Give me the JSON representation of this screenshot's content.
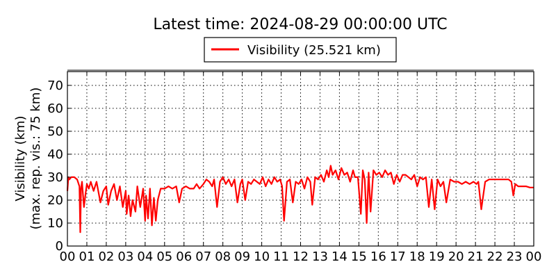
{
  "chart_data": {
    "type": "line",
    "title": "Latest time: 2024-08-29 00:00:00 UTC",
    "ylabel_line1": "Visibility (km)",
    "ylabel_line2": "(max. rep. vis.: 75 km)",
    "xlabel": "",
    "xlim": [
      0,
      24
    ],
    "ylim": [
      0,
      76
    ],
    "grid": true,
    "legend_position": "top-center",
    "x_tick_labels": [
      "00",
      "01",
      "02",
      "03",
      "04",
      "05",
      "06",
      "07",
      "08",
      "09",
      "10",
      "11",
      "12",
      "13",
      "14",
      "15",
      "16",
      "17",
      "18",
      "19",
      "20",
      "21",
      "22",
      "23",
      "00"
    ],
    "y_ticks": [
      0,
      10,
      20,
      30,
      40,
      50,
      60,
      70
    ],
    "series": [
      {
        "name": "Visibility (25.521 km)",
        "color": "#ff0000",
        "x": [
          0.0,
          0.05,
          0.1,
          0.2,
          0.35,
          0.5,
          0.62,
          0.66,
          0.7,
          0.75,
          0.85,
          0.95,
          1.0,
          1.1,
          1.2,
          1.35,
          1.5,
          1.7,
          1.85,
          2.0,
          2.1,
          2.25,
          2.4,
          2.55,
          2.7,
          2.85,
          3.0,
          3.05,
          3.15,
          3.25,
          3.35,
          3.5,
          3.6,
          3.75,
          3.9,
          4.0,
          4.05,
          4.15,
          4.25,
          4.35,
          4.45,
          4.55,
          4.65,
          4.8,
          5.0,
          5.2,
          5.4,
          5.6,
          5.75,
          5.9,
          6.1,
          6.3,
          6.5,
          6.65,
          6.8,
          7.0,
          7.15,
          7.3,
          7.45,
          7.55,
          7.7,
          7.85,
          8.0,
          8.15,
          8.3,
          8.45,
          8.6,
          8.75,
          8.9,
          9.0,
          9.15,
          9.3,
          9.45,
          9.6,
          9.75,
          9.9,
          10.05,
          10.2,
          10.35,
          10.5,
          10.65,
          10.8,
          10.95,
          11.05,
          11.15,
          11.3,
          11.45,
          11.6,
          11.75,
          11.9,
          12.05,
          12.2,
          12.35,
          12.5,
          12.6,
          12.75,
          12.9,
          13.05,
          13.2,
          13.35,
          13.45,
          13.55,
          13.65,
          13.8,
          13.95,
          14.1,
          14.25,
          14.4,
          14.55,
          14.7,
          14.8,
          14.95,
          15.1,
          15.2,
          15.3,
          15.4,
          15.5,
          15.6,
          15.75,
          15.9,
          16.05,
          16.2,
          16.35,
          16.5,
          16.65,
          16.8,
          16.95,
          17.1,
          17.25,
          17.4,
          17.55,
          17.7,
          17.85,
          18.0,
          18.15,
          18.3,
          18.45,
          18.6,
          18.75,
          18.9,
          19.05,
          19.2,
          19.35,
          19.5,
          19.7,
          19.9,
          20.1,
          20.3,
          20.5,
          20.7,
          20.9,
          21.05,
          21.15,
          21.3,
          21.5,
          21.7,
          21.9,
          22.1,
          22.3,
          22.5,
          22.7,
          22.85,
          22.95,
          23.05,
          23.2,
          23.4,
          23.6,
          23.8,
          24.0
        ],
        "y": [
          24,
          30,
          29,
          30,
          30,
          29,
          26,
          6,
          25,
          28,
          17,
          24,
          27,
          25,
          28,
          24,
          28,
          19,
          24,
          26,
          18,
          24,
          27,
          20,
          26,
          17,
          24,
          14,
          22,
          13,
          20,
          15,
          26,
          17,
          25,
          11,
          22,
          12,
          25,
          9,
          21,
          11,
          20,
          25,
          25,
          26,
          25,
          26,
          19,
          25,
          26,
          25,
          25,
          27,
          25,
          27,
          29,
          28,
          26,
          29,
          17,
          28,
          30,
          27,
          29,
          26,
          29,
          19,
          27,
          29,
          20,
          28,
          27,
          29,
          28,
          27,
          30,
          26,
          29,
          27,
          30,
          28,
          29,
          26,
          11,
          28,
          29,
          19,
          28,
          27,
          29,
          25,
          30,
          28,
          18,
          30,
          29,
          31,
          28,
          33,
          30,
          35,
          31,
          33,
          29,
          34,
          31,
          32,
          28,
          33,
          30,
          30,
          14,
          33,
          29,
          10,
          32,
          15,
          33,
          31,
          32,
          30,
          33,
          31,
          32,
          27,
          31,
          28,
          31,
          31,
          30,
          29,
          31,
          26,
          30,
          29,
          30,
          17,
          29,
          16,
          29,
          26,
          28,
          19,
          29,
          28,
          28,
          27,
          28,
          27,
          28,
          27,
          28,
          16,
          28,
          29,
          29,
          29,
          29,
          29,
          29,
          28,
          22,
          27,
          26,
          26,
          26,
          25.5,
          25.5
        ]
      }
    ]
  }
}
